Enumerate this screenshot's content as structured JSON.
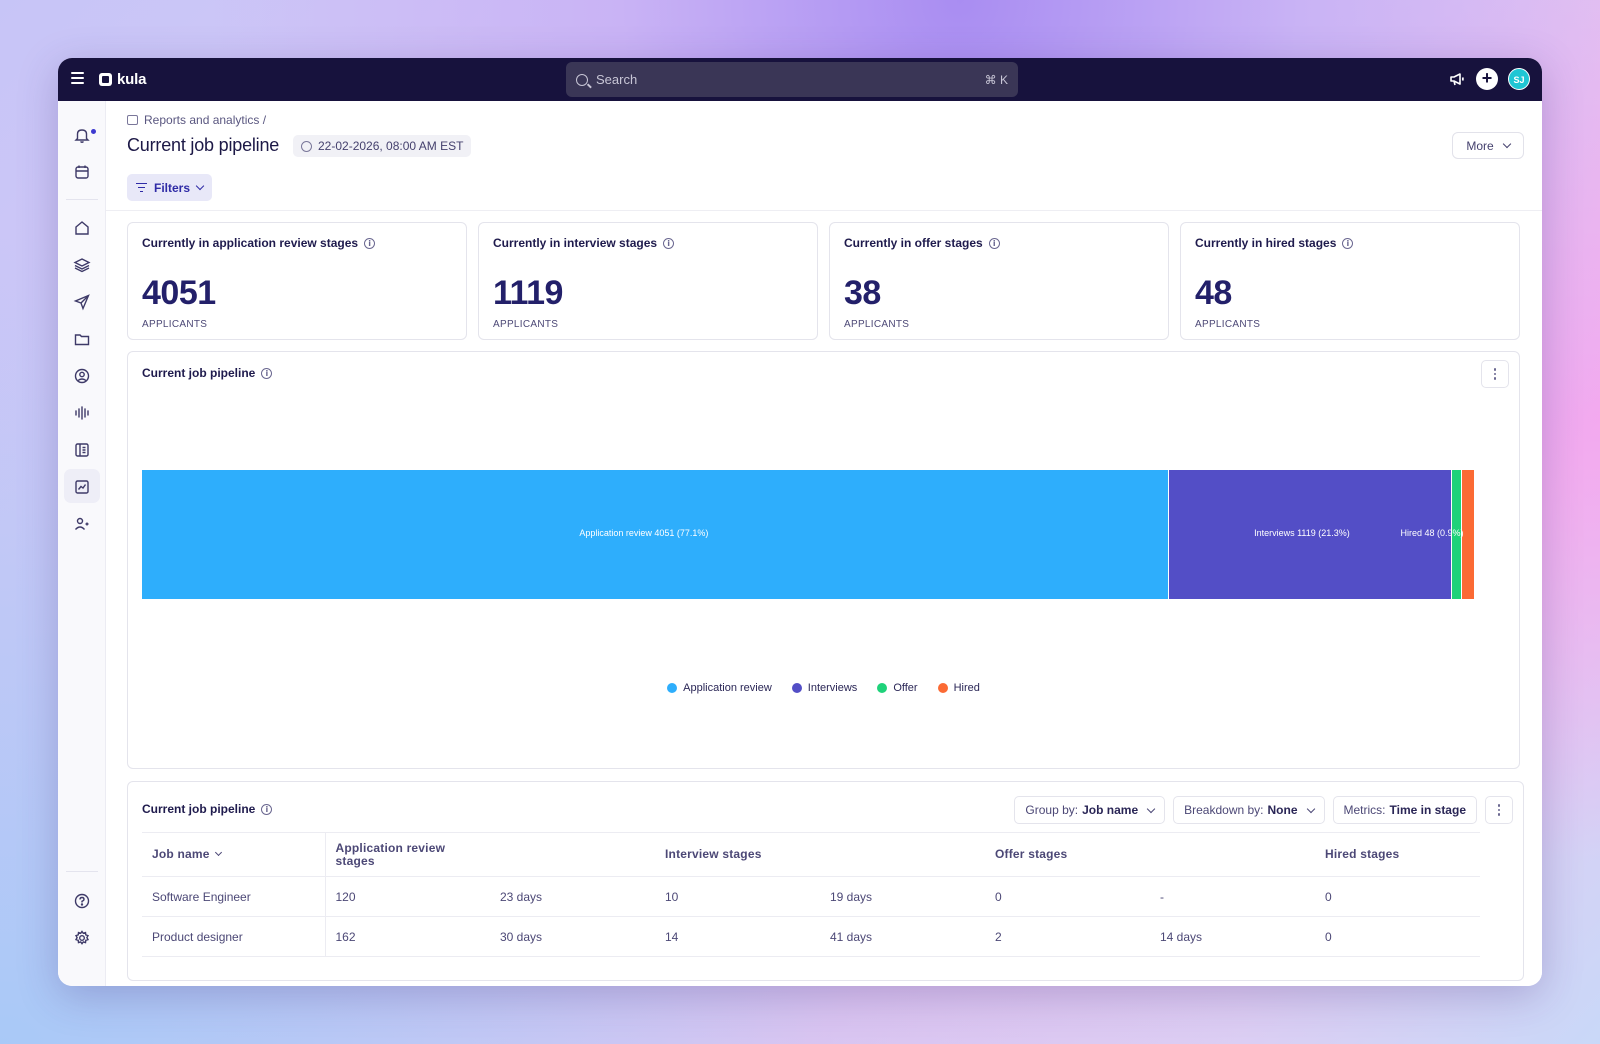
{
  "app": {
    "logo_text": "kula"
  },
  "search": {
    "placeholder": "Search",
    "shortcut": "⌘ K"
  },
  "user": {
    "initials": "SJ"
  },
  "sidebar": {
    "items": [
      {
        "icon": "bell-icon"
      },
      {
        "icon": "calendar-icon"
      },
      {
        "icon": "home-icon"
      },
      {
        "icon": "layers-icon"
      },
      {
        "icon": "send-icon"
      },
      {
        "icon": "folder-icon"
      },
      {
        "icon": "user-circle-icon"
      },
      {
        "icon": "audio-icon"
      },
      {
        "icon": "book-icon"
      },
      {
        "icon": "chart-icon",
        "active": true
      },
      {
        "icon": "users-icon"
      },
      {
        "icon": "help-icon"
      },
      {
        "icon": "settings-icon"
      }
    ]
  },
  "header": {
    "breadcrumb": "Reports and analytics /",
    "title": "Current job pipeline",
    "date": "22-02-2026, 08:00 AM EST",
    "more_label": "More",
    "filters_label": "Filters"
  },
  "cards": [
    {
      "title": "Currently in application review stages",
      "value": "4051",
      "unit": "APPLICANTS"
    },
    {
      "title": "Currently in interview stages",
      "value": "1119",
      "unit": "APPLICANTS"
    },
    {
      "title": "Currently in offer stages",
      "value": "38",
      "unit": "APPLICANTS"
    },
    {
      "title": "Currently in hired stages",
      "value": "48",
      "unit": "APPLICANTS"
    }
  ],
  "chart_panel": {
    "title": "Current job pipeline"
  },
  "chart_data": {
    "type": "bar",
    "orientation": "horizontal-stacked-100",
    "categories": [
      "Application review",
      "Interviews",
      "Offer",
      "Hired"
    ],
    "values": [
      4051,
      1119,
      38,
      48
    ],
    "percent": [
      77.1,
      21.3,
      0.7,
      0.9
    ],
    "data_labels": [
      "Application review 4051 (77.1%)",
      "Interviews 1119 (21.3%)",
      "",
      "Hired 48 (0.9%)"
    ],
    "colors": [
      "#2eaefc",
      "#534ec6",
      "#1fd27a",
      "#fb6a34"
    ],
    "legend_position": "bottom-center",
    "grid": false
  },
  "table_panel": {
    "title": "Current job pipeline",
    "group_by_label": "Group by:",
    "group_by_value": "Job name",
    "breakdown_label": "Breakdown by:",
    "breakdown_value": "None",
    "metrics_label": "Metrics:",
    "metrics_value": "Time in stage",
    "columns": [
      "Job name",
      "Application review stages",
      "Interview stages",
      "Offer stages",
      "Hired stages"
    ],
    "rows": [
      {
        "job": "Software Engineer",
        "app_review": "120",
        "app_review_time": "23 days",
        "interview": "10",
        "interview_time": "19 days",
        "offer": "0",
        "offer_time": "-",
        "hired": "0"
      },
      {
        "job": "Product designer",
        "app_review": "162",
        "app_review_time": "30 days",
        "interview": "14",
        "interview_time": "41 days",
        "offer": "2",
        "offer_time": "14 days",
        "hired": "0"
      }
    ]
  }
}
